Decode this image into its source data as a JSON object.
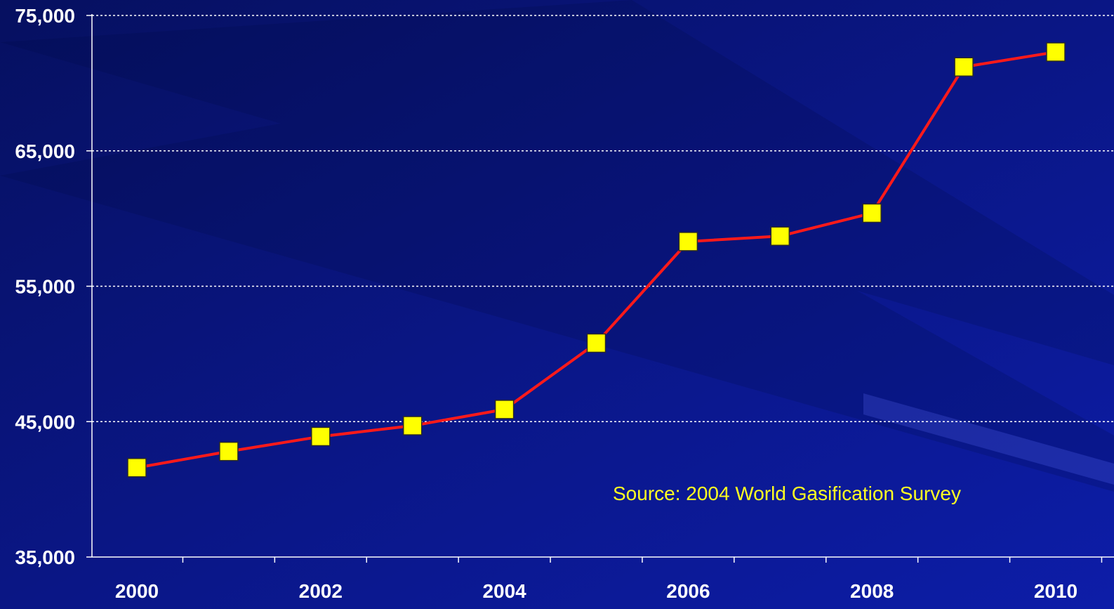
{
  "colors": {
    "background": "#0a1685",
    "line": "#ff1a1a",
    "marker_fill": "#ffff00",
    "marker_stroke": "#2a2a2a",
    "grid": "#ffffff",
    "axis": "#ffffff",
    "text": "#ffffff",
    "annotation": "#ffff22"
  },
  "chart_data": {
    "type": "line",
    "title": "",
    "xlabel": "",
    "ylabel": "",
    "x": [
      2000,
      2001,
      2002,
      2003,
      2004,
      2005,
      2006,
      2007,
      2008,
      2009,
      2010
    ],
    "series": [
      {
        "values": [
          41600,
          42800,
          43900,
          44700,
          45900,
          50800,
          58300,
          58700,
          60400,
          71200,
          72300
        ]
      }
    ],
    "xlim": [
      2000,
      2010
    ],
    "ylim": [
      35000,
      75000
    ],
    "x_ticks": [
      "2000",
      "2002",
      "2004",
      "2006",
      "2008",
      "2010"
    ],
    "y_ticks": [
      "35,000",
      "45,000",
      "55,000",
      "65,000",
      "75,000"
    ],
    "y_tick_values": [
      35000,
      45000,
      55000,
      65000,
      75000
    ],
    "grid": true,
    "grid_style": "dashed",
    "marker": "square",
    "legend": "none",
    "annotation": "Source:  2004 World Gasification Survey"
  }
}
